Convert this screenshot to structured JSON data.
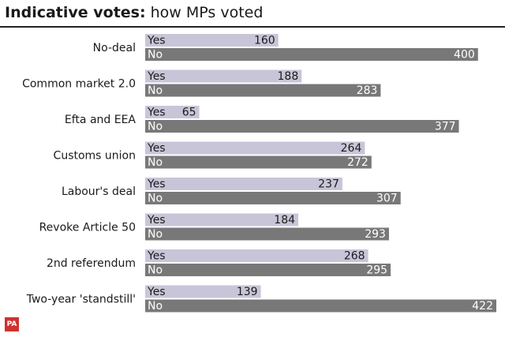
{
  "title": {
    "bold": "Indicative votes:",
    "rest": " how MPs voted"
  },
  "colors": {
    "yes": "#c9c5d8",
    "no": "#787878",
    "rule": "#222222",
    "logo": "#d0312d"
  },
  "logo_text": "PA",
  "chart_data": {
    "type": "bar",
    "orientation": "horizontal",
    "categories": [
      "No-deal",
      "Common market 2.0",
      "Efta and EEA",
      "Customs union",
      "Labour's deal",
      "Revoke Article 50",
      "2nd referendum",
      "Two-year 'standstill'"
    ],
    "series": [
      {
        "name": "Yes",
        "values": [
          160,
          188,
          65,
          264,
          237,
          184,
          268,
          139
        ]
      },
      {
        "name": "No",
        "values": [
          400,
          283,
          377,
          272,
          307,
          293,
          295,
          422
        ]
      }
    ],
    "xlim": [
      0,
      422
    ],
    "grid": false,
    "legend": "none"
  }
}
